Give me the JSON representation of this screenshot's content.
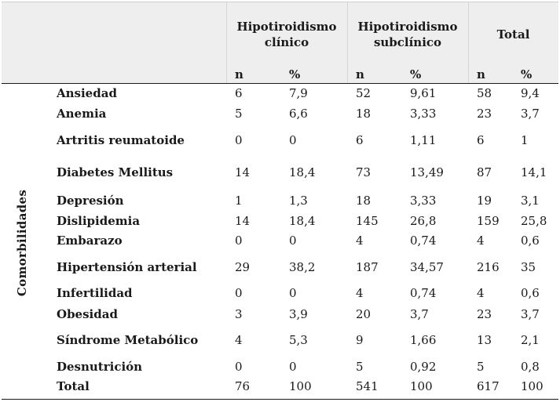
{
  "header": {
    "groups": [
      "Hipotiroidismo\nclínico",
      "Hipotiroidismo\nsubclínico",
      "Total"
    ],
    "sub": [
      "n",
      "%",
      "n",
      "%",
      "n",
      "%"
    ]
  },
  "side_label": "Comorbilidades",
  "rows": [
    {
      "label": "Ansiedad",
      "values": [
        "6",
        "7,9",
        "52",
        "9,61",
        "58",
        "9,4"
      ]
    },
    {
      "label": "Anemia",
      "values": [
        "5",
        "6,6",
        "18",
        "3,33",
        "23",
        "3,7"
      ]
    },
    {
      "label": "Artritis reumatoide",
      "values": [
        "0",
        "0",
        "6",
        "1,11",
        "6",
        "1"
      ]
    },
    {
      "label": "Diabetes Mellitus",
      "values": [
        "14",
        "18,4",
        "73",
        "13,49",
        "87",
        "14,1"
      ]
    },
    {
      "label": "Depresión",
      "values": [
        "1",
        "1,3",
        "18",
        "3,33",
        "19",
        "3,1"
      ]
    },
    {
      "label": "Dislipidemia",
      "values": [
        "14",
        "18,4",
        "145",
        "26,8",
        "159",
        "25,8"
      ]
    },
    {
      "label": "Embarazo",
      "values": [
        "0",
        "0",
        "4",
        "0,74",
        "4",
        "0,6"
      ]
    },
    {
      "label": "Hipertensión arterial",
      "values": [
        "29",
        "38,2",
        "187",
        "34,57",
        "216",
        "35"
      ]
    },
    {
      "label": "Infertilidad",
      "values": [
        "0",
        "0",
        "4",
        "0,74",
        "4",
        "0,6"
      ]
    },
    {
      "label": "Obesidad",
      "values": [
        "3",
        "3,9",
        "20",
        "3,7",
        "23",
        "3,7"
      ]
    },
    {
      "label": "Síndrome Metabólico",
      "values": [
        "4",
        "5,3",
        "9",
        "1,66",
        "13",
        "2,1"
      ]
    },
    {
      "label": "Desnutrición",
      "values": [
        "0",
        "0",
        "5",
        "0,92",
        "5",
        "0,8"
      ]
    },
    {
      "label": "Total",
      "values": [
        "76",
        "100",
        "541",
        "100",
        "617",
        "100"
      ]
    }
  ]
}
